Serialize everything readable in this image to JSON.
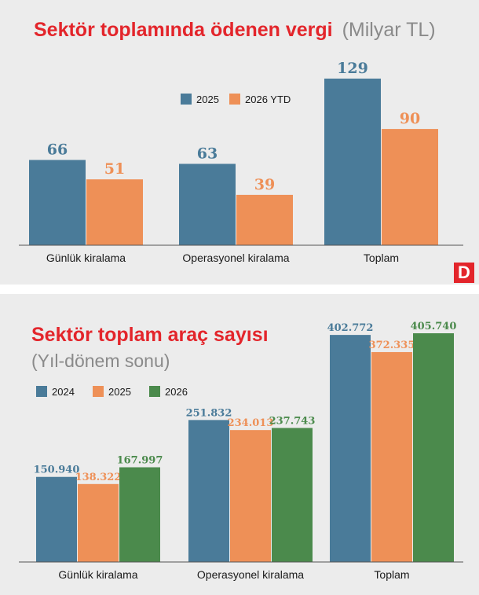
{
  "colors": {
    "title_red": "#e3252b",
    "grey_text": "#8a8a8a",
    "panel_bg": "#ececec",
    "s2024": "#4a7b99",
    "s2025": "#ee9057",
    "s2026": "#4b8a4c",
    "logo_bg": "#e3252b"
  },
  "logo": {
    "letter": "D"
  },
  "chart_data": [
    {
      "type": "bar",
      "title": "Sektör toplamında ödenen vergi",
      "subtitle": "(Milyar TL)",
      "categories": [
        "Günlük kiralama",
        "Operasyonel kiralama",
        "Toplam"
      ],
      "series": [
        {
          "name": "2025",
          "color": "#4a7b99",
          "values": [
            66,
            63,
            129
          ],
          "labels": [
            "66",
            "63",
            "129"
          ]
        },
        {
          "name": "2026 YTD",
          "color": "#ee9057",
          "values": [
            51,
            39,
            90
          ],
          "labels": [
            "51",
            "39",
            "90"
          ]
        }
      ],
      "ylim": [
        0,
        129
      ],
      "legend": "top-center",
      "grid": false
    },
    {
      "type": "bar",
      "title": "Sektör toplam araç sayısı",
      "subtitle": "(Yıl-dönem sonu)",
      "categories": [
        "Günlük kiralama",
        "Operasyonel kiralama",
        "Toplam"
      ],
      "series": [
        {
          "name": "2024",
          "color": "#4a7b99",
          "values": [
            150940,
            251832,
            402772
          ],
          "labels": [
            "150.940",
            "251.832",
            "402.772"
          ]
        },
        {
          "name": "2025",
          "color": "#ee9057",
          "values": [
            138322,
            234013,
            372335
          ],
          "labels": [
            "138.322",
            "234.013",
            "372.335"
          ]
        },
        {
          "name": "2026",
          "color": "#4b8a4c",
          "values": [
            167997,
            237743,
            405740
          ],
          "labels": [
            "167.997",
            "237.743",
            "405.740"
          ]
        }
      ],
      "ylim": [
        0,
        405740
      ],
      "legend": "top-left",
      "grid": false
    }
  ]
}
